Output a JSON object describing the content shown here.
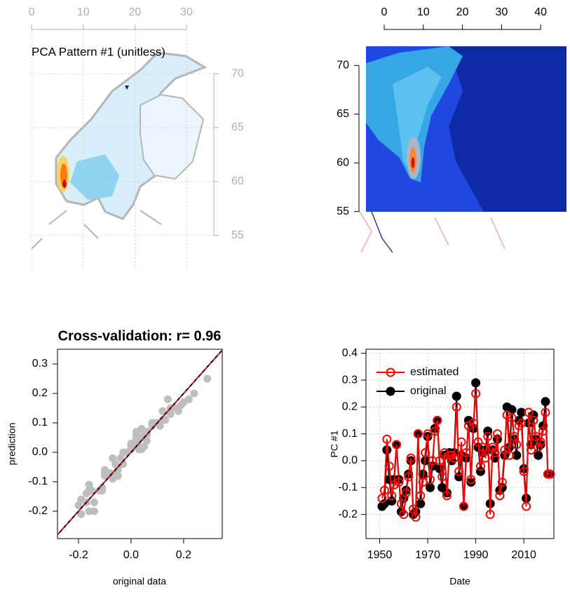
{
  "chart_data": [
    {
      "type": "map",
      "title": "PCA Pattern #1 (unitless)",
      "xlim": [
        -0.3,
        35.3
      ],
      "ylim": [
        51.8,
        74.1
      ],
      "xticks": [
        0,
        10,
        20,
        30
      ],
      "yticks": [
        55,
        60,
        65,
        70
      ],
      "grid": true
    },
    {
      "type": "map",
      "xlim": [
        -6.45,
        47.5
      ],
      "ylim": [
        50.8,
        73.7
      ],
      "xticks": [
        0,
        10,
        20,
        30,
        40
      ],
      "yticks": [
        55,
        60,
        65,
        70
      ]
    },
    {
      "type": "scatter",
      "title": "Cross-validation: r= 0.96",
      "xlabel": "original data",
      "ylabel": "prediction",
      "color": "#bebebe",
      "xlim": [
        -0.28,
        0.347
      ],
      "ylim": [
        -0.293,
        0.35
      ],
      "xticks": [
        -0.2,
        {
          "value": 0,
          "label": "0.0"
        },
        0.2
      ],
      "yticks": [
        -0.2,
        -0.1,
        {
          "value": 0,
          "label": "0.0"
        },
        0.1,
        0.2,
        0.3
      ],
      "x": [
        -0.17,
        -0.16,
        0.04,
        -0.07,
        -0.15,
        -0.07,
        0.06,
        -0.07,
        -0.19,
        -0.14,
        -0.11,
        -0.05,
        0.0,
        -0.2,
        -0.19,
        0.1,
        -0.16,
        -0.05,
        0.0,
        0.09,
        -0.1,
        -0.02,
        0.12,
        0.15,
        -0.03,
        -0.1,
        0.02,
        -0.12,
        0.03,
        0.0,
        0.03,
        0.24,
        -0.06,
        0.02,
        -0.17,
        0.01,
        0.15,
        -0.08,
        0.12,
        0.29,
        0.05,
        -0.04,
        0.03,
        0.04,
        0.11,
        -0.16,
        0.04,
        0.01,
        0.08,
        -0.11,
        -0.1,
        0.02,
        0.2,
        0.05,
        0.19,
        0.08,
        0.02,
        0.15,
        0.18,
        -0.03,
        -0.14,
        0.14,
        0.06,
        0.17,
        0.08,
        0.02,
        0.06,
        0.13,
        0.22,
        -0.05,
        -0.05
      ],
      "y": [
        -0.14,
        -0.11,
        0.08,
        -0.02,
        -0.13,
        -0.09,
        0.06,
        -0.08,
        -0.16,
        -0.2,
        -0.12,
        -0.06,
        0.01,
        -0.18,
        -0.21,
        0.1,
        -0.13,
        -0.08,
        0.03,
        0.1,
        -0.07,
        0.0,
        0.11,
        0.15,
        0.0,
        -0.06,
        0.03,
        -0.13,
        0.02,
        0.02,
        0.01,
        0.2,
        -0.04,
        0.07,
        -0.17,
        0.03,
        0.13,
        -0.07,
        0.14,
        0.25,
        0.07,
        -0.02,
        0.05,
        0.01,
        0.09,
        -0.2,
        0.05,
        0.03,
        0.1,
        -0.13,
        -0.08,
        0.04,
        0.17,
        0.02,
        0.16,
        0.09,
        0.06,
        0.13,
        0.14,
        -0.04,
        -0.17,
        0.18,
        0.04,
        0.15,
        0.09,
        0.05,
        0.07,
        0.11,
        0.18,
        -0.05,
        -0.05
      ]
    },
    {
      "type": "line",
      "xlabel": "Date",
      "ylabel": "PC #1",
      "legend": "top-left",
      "grid": true,
      "xlim": [
        1944.3,
        2022.5
      ],
      "ylim": [
        -0.29,
        0.415
      ],
      "xticks": [
        1950,
        1970,
        1990,
        2010
      ],
      "yticks": [
        -0.2,
        -0.1,
        {
          "value": 0,
          "label": "0.0"
        },
        0.1,
        0.2,
        0.3,
        0.4
      ],
      "x": [
        1951,
        1952,
        1953,
        1954,
        1955,
        1956,
        1957,
        1958,
        1959,
        1960,
        1961,
        1962,
        1963,
        1964,
        1965,
        1966,
        1967,
        1968,
        1969,
        1970,
        1971,
        1972,
        1973,
        1974,
        1975,
        1976,
        1977,
        1978,
        1979,
        1980,
        1981,
        1982,
        1983,
        1984,
        1985,
        1986,
        1987,
        1988,
        1989,
        1990,
        1991,
        1992,
        1993,
        1994,
        1995,
        1996,
        1997,
        1998,
        1999,
        2000,
        2001,
        2002,
        2003,
        2004,
        2005,
        2006,
        2007,
        2008,
        2009,
        2010,
        2011,
        2012,
        2013,
        2014,
        2015,
        2016,
        2017,
        2018,
        2019,
        2020,
        2021
      ],
      "series": [
        {
          "name": "estimated",
          "color": "#ff0000",
          "values": [
            -0.14,
            -0.11,
            0.08,
            -0.02,
            -0.13,
            -0.09,
            0.06,
            -0.08,
            -0.16,
            -0.2,
            -0.12,
            -0.06,
            0.01,
            -0.18,
            -0.21,
            0.1,
            -0.13,
            -0.08,
            0.03,
            0.1,
            -0.07,
            0.0,
            0.11,
            0.15,
            0.0,
            -0.06,
            0.03,
            -0.13,
            0.02,
            0.02,
            0.01,
            0.2,
            -0.04,
            0.07,
            -0.17,
            0.03,
            0.13,
            -0.07,
            0.14,
            0.25,
            0.07,
            -0.02,
            0.05,
            0.01,
            0.09,
            -0.2,
            0.05,
            0.03,
            0.1,
            -0.13,
            -0.08,
            0.04,
            0.17,
            0.02,
            0.16,
            0.09,
            0.06,
            0.13,
            0.14,
            -0.04,
            -0.17,
            0.18,
            0.04,
            0.15,
            0.09,
            0.05,
            0.07,
            0.11,
            0.18,
            -0.05,
            -0.05
          ]
        },
        {
          "name": "original",
          "color": "#000000",
          "values": [
            -0.17,
            -0.16,
            0.04,
            -0.07,
            -0.15,
            -0.07,
            0.06,
            -0.07,
            -0.19,
            -0.14,
            -0.11,
            -0.05,
            0.0,
            -0.2,
            -0.19,
            0.1,
            -0.16,
            -0.05,
            0.0,
            0.09,
            -0.1,
            -0.02,
            0.12,
            0.15,
            -0.03,
            -0.1,
            0.02,
            -0.12,
            0.03,
            0.0,
            0.03,
            0.24,
            -0.06,
            0.02,
            -0.17,
            0.01,
            0.15,
            -0.08,
            0.12,
            0.29,
            0.05,
            -0.04,
            0.03,
            0.04,
            0.11,
            -0.16,
            0.04,
            0.01,
            0.08,
            -0.11,
            -0.1,
            0.02,
            0.2,
            0.05,
            0.19,
            0.08,
            0.02,
            0.15,
            0.18,
            -0.03,
            -0.14,
            0.14,
            0.06,
            0.17,
            0.08,
            0.02,
            0.06,
            0.13,
            0.22,
            -0.05,
            -0.05
          ]
        }
      ]
    }
  ]
}
